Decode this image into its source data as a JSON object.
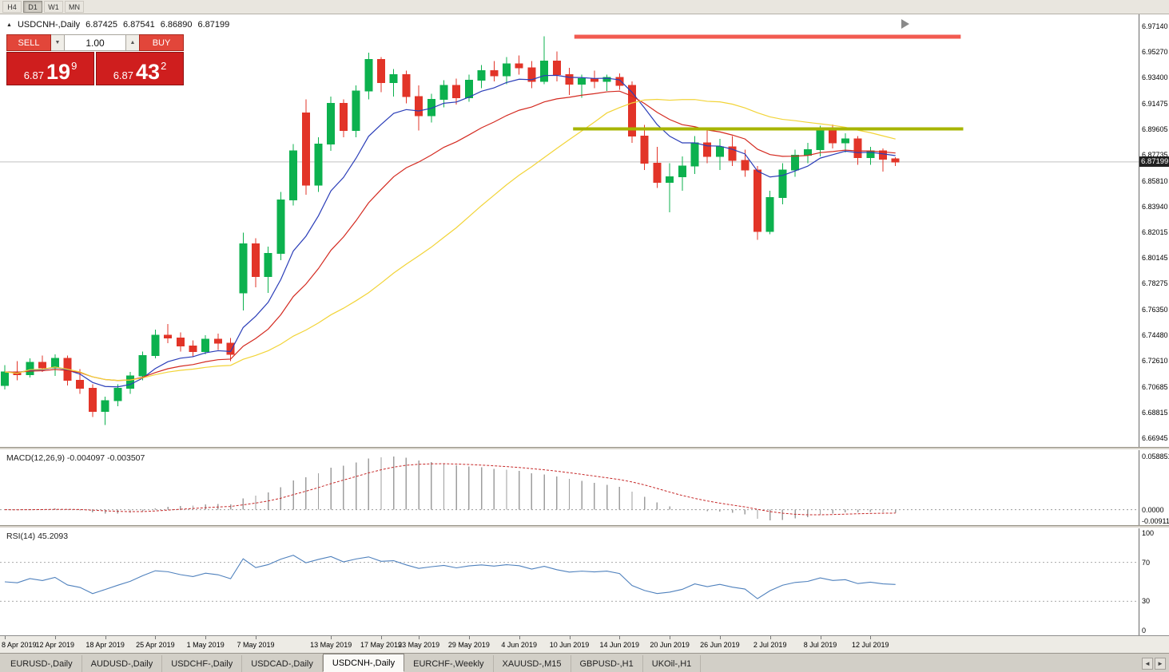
{
  "colors": {
    "bull": "#0cb14e",
    "bear": "#e23428",
    "ma_fast": "#2a3db8",
    "ma_medium": "#d42a20",
    "ma_slow": "#f2d438",
    "resistance": "#f25a50",
    "support": "#a7b500",
    "bid_line": "#c0c0c0",
    "macd_hist": "#9e9e9e",
    "macd_signal": "#c62828",
    "rsi_line": "#4f81bd",
    "badge_bg": "#222222"
  },
  "toolbar": {
    "timeframes": [
      {
        "label": "H4",
        "active": false
      },
      {
        "label": "D1",
        "active": true
      },
      {
        "label": "W1",
        "active": false
      },
      {
        "label": "MN",
        "active": false
      }
    ]
  },
  "info_bar": {
    "collapse_icon": "▲",
    "symbol": "USDCNH-,Daily",
    "open": "6.87425",
    "high": "6.87541",
    "low": "6.86890",
    "close": "6.87199"
  },
  "trade_panel": {
    "sell_label": "SELL",
    "buy_label": "BUY",
    "volume": "1.00",
    "spin_down_icon": "▼",
    "spin_up_icon": "▲",
    "sell_price_small": "6.87",
    "sell_price_big": "19",
    "sell_price_sup": "9",
    "buy_price_small": "6.87",
    "buy_price_big": "43",
    "buy_price_sup": "2"
  },
  "tabs": {
    "items": [
      {
        "label": "EURUSD-,Daily",
        "active": false
      },
      {
        "label": "AUDUSD-,Daily",
        "active": false
      },
      {
        "label": "USDCHF-,Daily",
        "active": false
      },
      {
        "label": "USDCAD-,Daily",
        "active": false
      },
      {
        "label": "USDCNH-,Daily",
        "active": true
      },
      {
        "label": "EURCHF-,Weekly",
        "active": false
      },
      {
        "label": "XAUUSD-,M15",
        "active": false
      },
      {
        "label": "GBPUSD-,H1",
        "active": false
      },
      {
        "label": "UKOil-,H1",
        "active": false
      }
    ],
    "scroll_left_icon": "◄",
    "scroll_right_icon": "►"
  },
  "chart_data": {
    "type": "candlestick",
    "symbol": "USDCNH",
    "timeframe": "Daily",
    "bid_display": "6.87199",
    "bid_price": 6.87199,
    "price_range": {
      "top": 6.9714,
      "bottom": 6.66945
    },
    "y_axis": [
      "6.97140",
      "6.95270",
      "6.93400",
      "6.91475",
      "6.89605",
      "6.87735",
      "6.85810",
      "6.83940",
      "6.82015",
      "6.80145",
      "6.78275",
      "6.76350",
      "6.74480",
      "6.72610",
      "6.70685",
      "6.68815",
      "6.66945"
    ],
    "x_axis": [
      {
        "i": 0,
        "label": "8 Apr 2019"
      },
      {
        "i": 4,
        "label": "12 Apr 2019"
      },
      {
        "i": 8,
        "label": "18 Apr 2019"
      },
      {
        "i": 12,
        "label": "25 Apr 2019"
      },
      {
        "i": 16,
        "label": "1 May 2019"
      },
      {
        "i": 20,
        "label": "7 May 2019"
      },
      {
        "i": 26,
        "label": "13 May 2019"
      },
      {
        "i": 30,
        "label": "17 May 2019"
      },
      {
        "i": 33,
        "label": "23 May 2019"
      },
      {
        "i": 37,
        "label": "29 May 2019"
      },
      {
        "i": 41,
        "label": "4 Jun 2019"
      },
      {
        "i": 45,
        "label": "10 Jun 2019"
      },
      {
        "i": 49,
        "label": "14 Jun 2019"
      },
      {
        "i": 53,
        "label": "20 Jun 2019"
      },
      {
        "i": 57,
        "label": "26 Jun 2019"
      },
      {
        "i": 61,
        "label": "2 Jul 2019"
      },
      {
        "i": 65,
        "label": "8 Jul 2019"
      },
      {
        "i": 69,
        "label": "12 Jul 2019"
      }
    ],
    "candles": [
      [
        6.708,
        6.723,
        6.705,
        6.718
      ],
      [
        6.718,
        6.726,
        6.712,
        6.716
      ],
      [
        6.716,
        6.728,
        6.714,
        6.725
      ],
      [
        6.725,
        6.73,
        6.718,
        6.721
      ],
      [
        6.721,
        6.731,
        6.715,
        6.728
      ],
      [
        6.728,
        6.73,
        6.708,
        6.712
      ],
      [
        6.712,
        6.72,
        6.702,
        6.706
      ],
      [
        6.706,
        6.709,
        6.685,
        6.689
      ],
      [
        6.689,
        6.7,
        6.679,
        6.697
      ],
      [
        6.697,
        6.709,
        6.693,
        6.706
      ],
      [
        6.706,
        6.718,
        6.702,
        6.715
      ],
      [
        6.715,
        6.733,
        6.712,
        6.73
      ],
      [
        6.73,
        6.749,
        6.728,
        6.745
      ],
      [
        6.745,
        6.753,
        6.739,
        6.743
      ],
      [
        6.743,
        6.747,
        6.733,
        6.737
      ],
      [
        6.737,
        6.741,
        6.729,
        6.733
      ],
      [
        6.733,
        6.745,
        6.731,
        6.742
      ],
      [
        6.742,
        6.746,
        6.734,
        6.739
      ],
      [
        6.739,
        6.743,
        6.726,
        6.731
      ],
      [
        6.776,
        6.82,
        6.763,
        6.812
      ],
      [
        6.812,
        6.816,
        6.78,
        6.788
      ],
      [
        6.788,
        6.81,
        6.776,
        6.805
      ],
      [
        6.805,
        6.85,
        6.8,
        6.844
      ],
      [
        6.844,
        6.885,
        6.84,
        6.88
      ],
      [
        6.908,
        6.918,
        6.848,
        6.855
      ],
      [
        6.855,
        6.89,
        6.85,
        6.885
      ],
      [
        6.885,
        6.92,
        6.88,
        6.915
      ],
      [
        6.915,
        6.918,
        6.89,
        6.895
      ],
      [
        6.895,
        6.928,
        6.89,
        6.924
      ],
      [
        6.924,
        6.952,
        6.918,
        6.947
      ],
      [
        6.947,
        6.949,
        6.923,
        6.93
      ],
      [
        6.93,
        6.94,
        6.92,
        6.936
      ],
      [
        6.936,
        6.939,
        6.915,
        6.92
      ],
      [
        6.92,
        6.928,
        6.895,
        6.906
      ],
      [
        6.906,
        6.922,
        6.901,
        6.918
      ],
      [
        6.918,
        6.932,
        6.912,
        6.928
      ],
      [
        6.928,
        6.933,
        6.914,
        6.919
      ],
      [
        6.919,
        6.936,
        6.916,
        6.932
      ],
      [
        6.932,
        6.943,
        6.926,
        6.939
      ],
      [
        6.939,
        6.946,
        6.931,
        6.935
      ],
      [
        6.935,
        6.949,
        6.929,
        6.944
      ],
      [
        6.944,
        6.95,
        6.936,
        6.941
      ],
      [
        6.941,
        6.946,
        6.926,
        6.931
      ],
      [
        6.931,
        6.964,
        6.929,
        6.946
      ],
      [
        6.946,
        6.953,
        6.931,
        6.936
      ],
      [
        6.936,
        6.941,
        6.921,
        6.929
      ],
      [
        6.929,
        6.936,
        6.919,
        6.933
      ],
      [
        6.933,
        6.939,
        6.926,
        6.931
      ],
      [
        6.931,
        6.936,
        6.924,
        6.934
      ],
      [
        6.934,
        6.937,
        6.925,
        6.928
      ],
      [
        6.928,
        6.931,
        6.886,
        6.891
      ],
      [
        6.891,
        6.899,
        6.866,
        6.871
      ],
      [
        6.871,
        6.883,
        6.853,
        6.857
      ],
      [
        6.857,
        6.871,
        6.835,
        6.861
      ],
      [
        6.861,
        6.876,
        6.851,
        6.869
      ],
      [
        6.869,
        6.891,
        6.863,
        6.886
      ],
      [
        6.886,
        6.896,
        6.871,
        6.876
      ],
      [
        6.876,
        6.889,
        6.866,
        6.883
      ],
      [
        6.883,
        6.891,
        6.869,
        6.873
      ],
      [
        6.873,
        6.881,
        6.861,
        6.866
      ],
      [
        6.866,
        6.869,
        6.815,
        6.821
      ],
      [
        6.821,
        6.851,
        6.819,
        6.846
      ],
      [
        6.846,
        6.871,
        6.841,
        6.866
      ],
      [
        6.866,
        6.881,
        6.861,
        6.877
      ],
      [
        6.877,
        6.886,
        6.871,
        6.881
      ],
      [
        6.881,
        6.8985,
        6.876,
        6.8955
      ],
      [
        6.8955,
        6.8995,
        6.882,
        6.886
      ],
      [
        6.886,
        6.893,
        6.879,
        6.889
      ],
      [
        6.889,
        6.891,
        6.87,
        6.875
      ],
      [
        6.875,
        6.883,
        6.87,
        6.88
      ],
      [
        6.88,
        6.882,
        6.865,
        6.874
      ],
      [
        6.8743,
        6.8754,
        6.8689,
        6.872
      ]
    ],
    "moving_averages": [
      {
        "name": "fast",
        "type": "ema",
        "period": 8,
        "color": "#2a3db8"
      },
      {
        "name": "medium",
        "type": "ema",
        "period": 17,
        "color": "#d42a20"
      },
      {
        "name": "slow",
        "type": "sma",
        "period": 30,
        "color": "#f2d438"
      }
    ],
    "overlays": {
      "resistance_line": {
        "price": 6.9638,
        "from_i": 45.4,
        "to_i": 76.2,
        "color": "#f25a50",
        "width": 5
      },
      "support_line": {
        "price": 6.8962,
        "from_i": 45.3,
        "to_i": 76.4,
        "color": "#a7b500",
        "width": 4
      }
    },
    "macd": {
      "label": "MACD(12,26,9) -0.004097 -0.003507",
      "fast": 12,
      "slow": 26,
      "signal": 9,
      "values_display": [
        "-0.004097",
        "-0.003507"
      ],
      "axis_labels": [
        "0.058851",
        "0.0000",
        "-0.0091163"
      ]
    },
    "rsi": {
      "label": "RSI(14) 45.2093",
      "period": 14,
      "value_display": "45.2093",
      "levels": [
        70,
        30
      ],
      "axis_labels": [
        "100",
        "70",
        "30",
        "0"
      ]
    }
  }
}
